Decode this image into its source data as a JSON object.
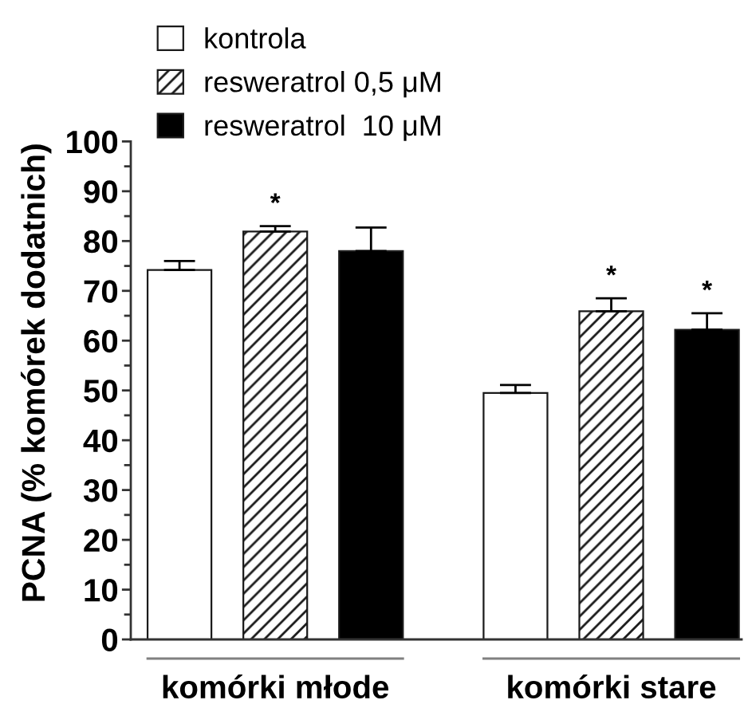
{
  "chart_data": {
    "type": "bar",
    "categories": [
      "komórki młode",
      "komórki stare"
    ],
    "ylabel": "PCNA (% komórek dodatnich)",
    "ylim": [
      0,
      100
    ],
    "yticks": [
      0,
      {
        "value": 5,
        "label": null
      },
      10,
      {
        "value": 15,
        "label": null
      },
      20,
      {
        "value": 25,
        "label": null
      },
      30,
      {
        "value": 35,
        "label": null
      },
      40,
      {
        "value": 45,
        "label": null
      },
      50,
      {
        "value": 55,
        "label": null
      },
      60,
      {
        "value": 65,
        "label": null
      },
      70,
      {
        "value": 75,
        "label": null
      },
      80,
      {
        "value": 85,
        "label": null
      },
      90,
      {
        "value": 95,
        "label": null
      },
      100
    ],
    "legend": "top left",
    "series": [
      {
        "name": "kontrola",
        "color": "#ffffff",
        "values": [
          74.2,
          49.5
        ],
        "errors": [
          [
            74.2,
            76.0
          ],
          [
            49.5,
            51.1
          ]
        ]
      },
      {
        "name": "resweratrol 0,5 μM",
        "color": "#1a1a1a",
        "values": [
          81.9,
          65.9
        ],
        "errors": [
          [
            81.9,
            83.0
          ],
          [
            65.9,
            68.5
          ]
        ],
        "value_labels": [
          "*",
          "*"
        ]
      },
      {
        "name": "resweratrol  10 μM",
        "color": "#000000",
        "values": [
          78.0,
          62.2
        ],
        "errors": [
          [
            78.0,
            82.7
          ],
          [
            62.2,
            65.5
          ]
        ],
        "value_labels": [
          null,
          "*"
        ]
      }
    ]
  }
}
